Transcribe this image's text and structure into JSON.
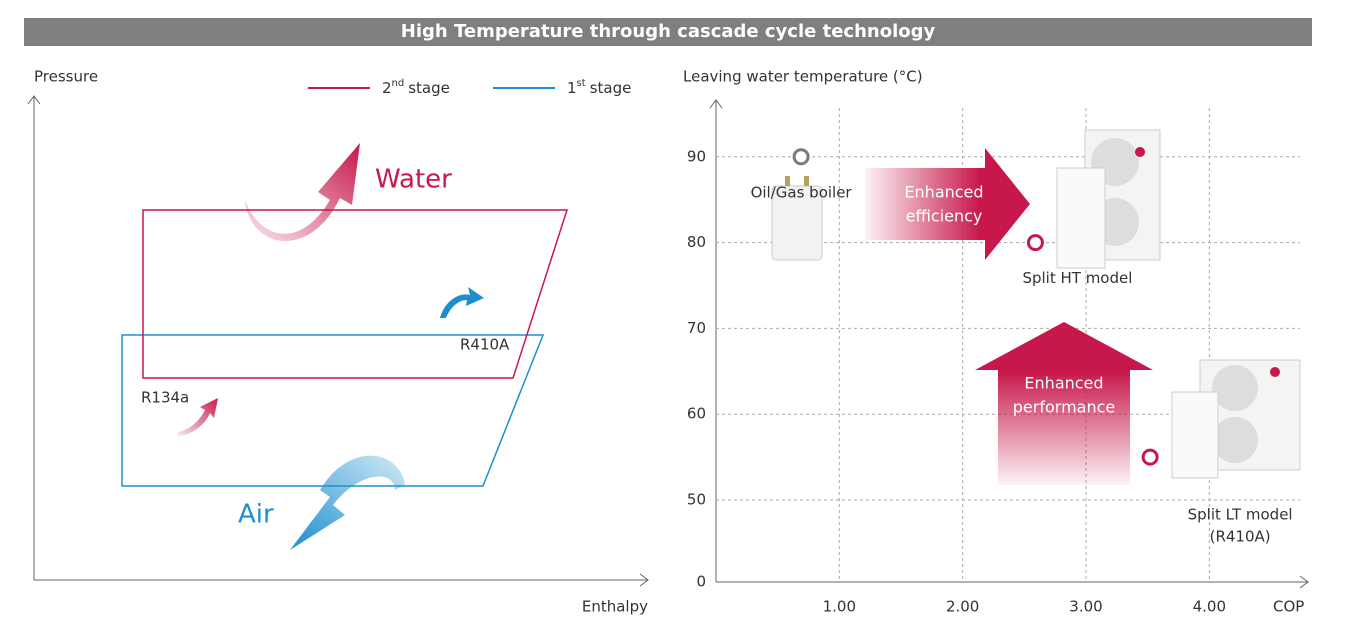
{
  "header": {
    "title": "High Temperature through cascade cycle technology"
  },
  "diagram": {
    "y_label": "Pressure",
    "x_label": "Enthalpy",
    "legend": [
      {
        "ordinal": "2",
        "sup": "nd",
        "label": "stage",
        "color": "#c8174a"
      },
      {
        "ordinal": "1",
        "sup": "st",
        "label": "stage",
        "color": "#1e8fce"
      }
    ],
    "heat_out": "Water",
    "heat_in": "Air",
    "refrigerant_upper": "R410A",
    "refrigerant_lower": "R134a"
  },
  "chart_data": {
    "type": "scatter",
    "y_label": "Leaving water temperature (°C)",
    "x_label": "COP",
    "xlim": [
      0,
      4.8
    ],
    "ylim": [
      0,
      96
    ],
    "axis_break": true,
    "xticks": [
      {
        "value": 1,
        "label": "1.00"
      },
      {
        "value": 2,
        "label": "2.00"
      },
      {
        "value": 3,
        "label": "3.00"
      },
      {
        "value": 4,
        "label": "4.00"
      }
    ],
    "yticks": [
      0,
      50,
      60,
      70,
      80,
      90
    ],
    "grid": true,
    "series": [
      {
        "name": "Oil/Gas boiler",
        "color": "#7a7a7a",
        "x": [
          0.69
        ],
        "values": [
          90
        ]
      },
      {
        "name": "Split HT model",
        "color": "#c8174a",
        "x": [
          2.59
        ],
        "values": [
          80
        ]
      },
      {
        "name": "Split LT model",
        "note": "(R410A)",
        "color": "#c8174a",
        "x": [
          3.52
        ],
        "values": [
          55
        ]
      }
    ],
    "annotations": [
      {
        "lines": [
          "Enhanced",
          "efficiency"
        ]
      },
      {
        "lines": [
          "Enhanced",
          "performance"
        ]
      }
    ]
  }
}
